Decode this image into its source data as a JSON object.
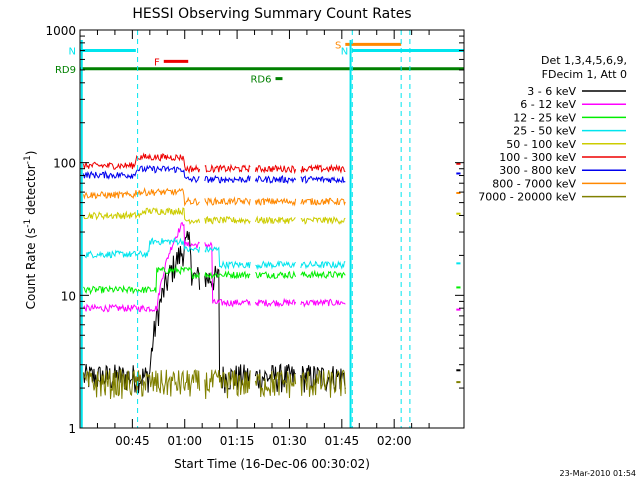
{
  "chart_data": {
    "type": "line",
    "title": "HESSI Observing Summary Count Rates",
    "ylabel_main": "Count Rate (s",
    "ylabel_sup1": "-1",
    "ylabel_mid": " detector",
    "ylabel_sup2": "-1",
    "ylabel_end": ")",
    "xlabel": "Start Time (16-Dec-06 00:30:02)",
    "y_scale": "log",
    "ylim": [
      1,
      1000
    ],
    "xlim_minutes": [
      30,
      140
    ],
    "y_ticks": [
      {
        "v": 1,
        "label": "1"
      },
      {
        "v": 10,
        "label": "10"
      },
      {
        "v": 100,
        "label": "100"
      },
      {
        "v": 1000,
        "label": "1000"
      }
    ],
    "x_ticks": [
      {
        "m": 45,
        "label": "00:45"
      },
      {
        "m": 60,
        "label": "01:00"
      },
      {
        "m": 75,
        "label": "01:15"
      },
      {
        "m": 90,
        "label": "01:30"
      },
      {
        "m": 105,
        "label": "01:45"
      },
      {
        "m": 120,
        "label": "02:00"
      }
    ],
    "legend_placement": "right",
    "legend_header": [
      "Det 1,3,4,5,6,9,",
      "FDecim 1, Att 0"
    ],
    "series": [
      {
        "name": "3 - 6 keV",
        "color": "#000000"
      },
      {
        "name": "6 - 12 keV",
        "color": "#ff00ff"
      },
      {
        "name": "12 - 25 keV",
        "color": "#00ee00"
      },
      {
        "name": "25 - 50 keV",
        "color": "#00e5ee"
      },
      {
        "name": "50 - 100 keV",
        "color": "#cccc00"
      },
      {
        "name": "100 - 300 keV",
        "color": "#ee0000"
      },
      {
        "name": "300 - 800 keV",
        "color": "#0000ee"
      },
      {
        "name": "800 - 7000 keV",
        "color": "#ff8800"
      },
      {
        "name": "7000 - 20000 keV",
        "color": "#808000"
      }
    ],
    "flags": [
      {
        "label": "N",
        "color": "#00e5ee",
        "start": 30,
        "end": 46,
        "y": 700
      },
      {
        "label": "N",
        "color": "#00e5ee",
        "start": 108,
        "end": 140,
        "y": 700
      },
      {
        "label": "F",
        "color": "#ee0000",
        "start": 54,
        "end": 61,
        "y": 580
      },
      {
        "label": "S",
        "color": "#ff8800",
        "start": 106,
        "end": 122,
        "y": 780
      },
      {
        "label": "RD9",
        "color": "#008000",
        "start": 30,
        "end": 140,
        "y": 510
      },
      {
        "label": "RD6",
        "color": "#008000",
        "start": 86,
        "end": 88,
        "y": 430
      }
    ],
    "saa_lines_minutes": [
      30,
      46.5,
      108,
      122,
      124.5,
      140
    ],
    "night_lines_minutes": [
      30.5,
      107.5
    ],
    "footer_date": "23-Mar-2010 01:54"
  }
}
